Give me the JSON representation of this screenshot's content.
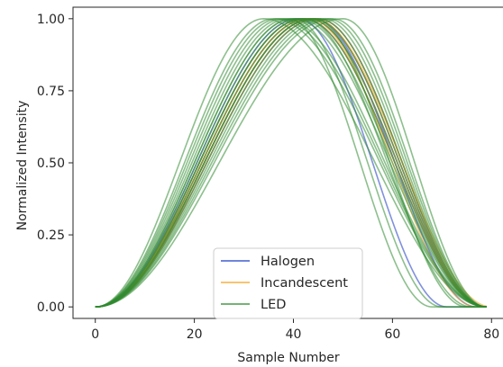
{
  "chart_data": {
    "type": "line",
    "xlabel": "Sample Number",
    "ylabel": "Normalized Intensity",
    "xlim": [
      -4.5,
      82.5
    ],
    "ylim": [
      -0.04,
      1.04
    ],
    "xticks": [
      0,
      20,
      40,
      60,
      80
    ],
    "xtick_labels": [
      "0",
      "20",
      "40",
      "60",
      "80"
    ],
    "yticks": [
      0.0,
      0.25,
      0.5,
      0.75,
      1.0
    ],
    "ytick_labels": [
      "0.00",
      "0.25",
      "0.50",
      "0.75",
      "1.00"
    ],
    "grid": false,
    "legend_position": "bottom-center",
    "x_range": [
      0,
      79
    ],
    "series": [
      {
        "name": "Halogen",
        "color": "#4a63cf",
        "opacity": 0.7,
        "curves": [
          {
            "peak": 44,
            "left_width": 44,
            "right_width": 35
          },
          {
            "peak": 43,
            "left_width": 43,
            "right_width": 36
          },
          {
            "peak": 45,
            "left_width": 45,
            "right_width": 34
          },
          {
            "peak": 42,
            "left_width": 42,
            "right_width": 37
          },
          {
            "peak": 44,
            "left_width": 44,
            "right_width": 33
          },
          {
            "peak": 41,
            "left_width": 41,
            "right_width": 30
          }
        ]
      },
      {
        "name": "Incandescent",
        "color": "#f5a623",
        "opacity": 0.55,
        "curves": [
          {
            "peak": 43,
            "left_width": 43,
            "right_width": 36
          },
          {
            "peak": 44,
            "left_width": 44,
            "right_width": 35
          },
          {
            "peak": 42,
            "left_width": 42,
            "right_width": 37
          },
          {
            "peak": 45,
            "left_width": 45,
            "right_width": 34
          },
          {
            "peak": 43,
            "left_width": 43,
            "right_width": 34
          },
          {
            "peak": 44,
            "left_width": 44,
            "right_width": 36
          }
        ]
      },
      {
        "name": "LED",
        "color": "#2f8a2f",
        "opacity": 0.55,
        "curves": [
          {
            "peak": 34,
            "left_width": 34,
            "right_width": 45
          },
          {
            "peak": 36,
            "left_width": 36,
            "right_width": 43
          },
          {
            "peak": 38,
            "left_width": 38,
            "right_width": 41
          },
          {
            "peak": 40,
            "left_width": 40,
            "right_width": 39
          },
          {
            "peak": 41,
            "left_width": 41,
            "right_width": 38
          },
          {
            "peak": 42,
            "left_width": 42,
            "right_width": 37
          },
          {
            "peak": 43,
            "left_width": 43,
            "right_width": 36
          },
          {
            "peak": 44,
            "left_width": 44,
            "right_width": 35
          },
          {
            "peak": 45,
            "left_width": 45,
            "right_width": 34
          },
          {
            "peak": 46,
            "left_width": 46,
            "right_width": 33
          },
          {
            "peak": 47,
            "left_width": 47,
            "right_width": 32
          },
          {
            "peak": 48,
            "left_width": 48,
            "right_width": 31
          },
          {
            "peak": 40,
            "left_width": 40,
            "right_width": 30
          },
          {
            "peak": 39,
            "left_width": 39,
            "right_width": 29
          },
          {
            "peak": 42,
            "left_width": 42,
            "right_width": 34
          },
          {
            "peak": 44,
            "left_width": 44,
            "right_width": 31
          },
          {
            "peak": 37,
            "left_width": 37,
            "right_width": 42
          },
          {
            "peak": 50,
            "left_width": 50,
            "right_width": 29
          }
        ]
      }
    ]
  }
}
